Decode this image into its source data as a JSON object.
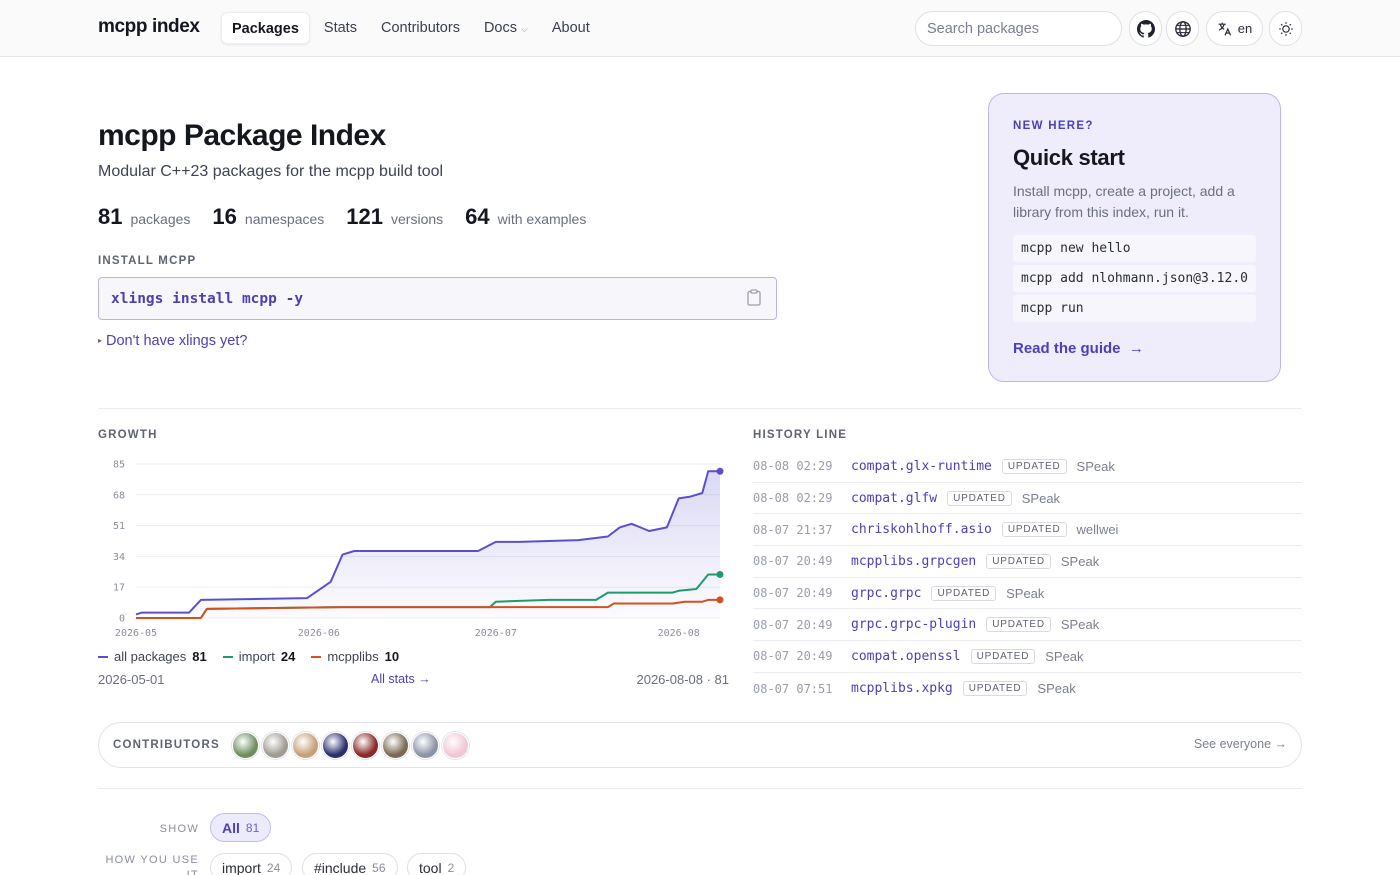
{
  "header": {
    "brand": "mcpp index",
    "nav": [
      {
        "label": "Packages",
        "active": true
      },
      {
        "label": "Stats"
      },
      {
        "label": "Contributors"
      },
      {
        "label": "Docs",
        "has_dropdown": true
      },
      {
        "label": "About"
      }
    ],
    "search_placeholder": "Search packages",
    "icons": [
      "github-icon",
      "globe-icon",
      "translate-icon",
      "theme-icon"
    ],
    "lang_label": "en"
  },
  "hero": {
    "title": "mcpp Package Index",
    "subtitle": "Modular C++23 packages for the mcpp build tool",
    "stats": [
      {
        "value": "81",
        "label": "packages"
      },
      {
        "value": "16",
        "label": "namespaces"
      },
      {
        "value": "121",
        "label": "versions"
      },
      {
        "value": "64",
        "label": "with examples"
      }
    ],
    "install_label": "INSTALL MCPP",
    "install_command": "xlings install mcpp -y",
    "no_xlings": "Don't have xlings yet?"
  },
  "quickstart": {
    "kicker": "NEW HERE?",
    "title": "Quick start",
    "description": "Install mcpp, create a project, add a library from this index, run it.",
    "commands": [
      "mcpp new hello",
      "mcpp add nlohmann.json@3.12.0",
      "mcpp run"
    ],
    "link": "Read the guide",
    "link_arrow": "→"
  },
  "growth": {
    "label": "GROWTH",
    "start_date": "2026-05-01",
    "all_stats": "All stats →",
    "end": "2026-08-08 · 81"
  },
  "chart_data": {
    "type": "area",
    "x_ticks": [
      "2026-05",
      "2026-06",
      "2026-07",
      "2026-08"
    ],
    "y_ticks": [
      0,
      17,
      34,
      51,
      68,
      85
    ],
    "ylim": [
      0,
      85
    ],
    "xlim": [
      "2026-05-01",
      "2026-08-08"
    ],
    "grid": true,
    "legend_position": "bottom-left",
    "series": [
      {
        "name": "all packages",
        "last": "81",
        "color": "#5b4fcf",
        "points": [
          [
            "2026-05-01",
            2
          ],
          [
            "2026-05-02",
            3
          ],
          [
            "2026-05-10",
            3
          ],
          [
            "2026-05-12",
            10
          ],
          [
            "2026-05-30",
            11
          ],
          [
            "2026-06-03",
            20
          ],
          [
            "2026-06-05",
            35
          ],
          [
            "2026-06-07",
            37
          ],
          [
            "2026-06-20",
            37
          ],
          [
            "2026-06-28",
            37
          ],
          [
            "2026-07-01",
            42
          ],
          [
            "2026-07-05",
            42
          ],
          [
            "2026-07-15",
            43
          ],
          [
            "2026-07-20",
            45
          ],
          [
            "2026-07-22",
            50
          ],
          [
            "2026-07-24",
            52
          ],
          [
            "2026-07-27",
            48
          ],
          [
            "2026-07-30",
            50
          ],
          [
            "2026-08-01",
            66
          ],
          [
            "2026-08-03",
            67
          ],
          [
            "2026-08-05",
            69
          ],
          [
            "2026-08-06",
            81
          ],
          [
            "2026-08-07",
            81
          ],
          [
            "2026-08-08",
            81
          ]
        ]
      },
      {
        "name": "import",
        "last": "24",
        "color": "#1e9b6d",
        "points": [
          [
            "2026-05-01",
            0
          ],
          [
            "2026-05-12",
            0
          ],
          [
            "2026-05-13",
            5
          ],
          [
            "2026-06-05",
            6
          ],
          [
            "2026-06-30",
            6
          ],
          [
            "2026-07-01",
            9
          ],
          [
            "2026-07-10",
            10
          ],
          [
            "2026-07-18",
            10
          ],
          [
            "2026-07-20",
            14
          ],
          [
            "2026-07-31",
            14
          ],
          [
            "2026-08-01",
            15
          ],
          [
            "2026-08-04",
            16
          ],
          [
            "2026-08-05",
            20
          ],
          [
            "2026-08-06",
            24
          ],
          [
            "2026-08-08",
            24
          ]
        ]
      },
      {
        "name": "mcpplibs",
        "last": "10",
        "color": "#d4511e",
        "points": [
          [
            "2026-05-01",
            0
          ],
          [
            "2026-05-12",
            0
          ],
          [
            "2026-05-13",
            5
          ],
          [
            "2026-06-05",
            6
          ],
          [
            "2026-07-20",
            6
          ],
          [
            "2026-07-21",
            8
          ],
          [
            "2026-07-31",
            8
          ],
          [
            "2026-08-02",
            9
          ],
          [
            "2026-08-05",
            9
          ],
          [
            "2026-08-06",
            10
          ],
          [
            "2026-08-08",
            10
          ]
        ]
      }
    ]
  },
  "history": {
    "label": "HISTORY LINE",
    "rows": [
      {
        "time": "08-08 02:29",
        "pkg": "compat.glx-runtime",
        "status": "UPDATED",
        "who": "SPeak"
      },
      {
        "time": "08-08 02:29",
        "pkg": "compat.glfw",
        "status": "UPDATED",
        "who": "SPeak"
      },
      {
        "time": "08-07 21:37",
        "pkg": "chriskohlhoff.asio",
        "status": "UPDATED",
        "who": "wellwei"
      },
      {
        "time": "08-07 20:49",
        "pkg": "mcpplibs.grpcgen",
        "status": "UPDATED",
        "who": "SPeak"
      },
      {
        "time": "08-07 20:49",
        "pkg": "grpc.grpc",
        "status": "UPDATED",
        "who": "SPeak"
      },
      {
        "time": "08-07 20:49",
        "pkg": "grpc.grpc-plugin",
        "status": "UPDATED",
        "who": "SPeak"
      },
      {
        "time": "08-07 20:49",
        "pkg": "compat.openssl",
        "status": "UPDATED",
        "who": "SPeak"
      },
      {
        "time": "08-07 07:51",
        "pkg": "mcpplibs.xpkg",
        "status": "UPDATED",
        "who": "SPeak"
      }
    ]
  },
  "contributors": {
    "label": "CONTRIBUTORS",
    "avatar_colors": [
      "#6f8f5f",
      "#a09a92",
      "#c7a07a",
      "#2b2f6e",
      "#8a2a2a",
      "#7b6a55",
      "#8d93a8",
      "#f1c6d6"
    ],
    "see_all": "See everyone →"
  },
  "filters": {
    "show_label": "SHOW",
    "how_label": "HOW YOU USE IT",
    "show_chips": [
      {
        "label": "All",
        "count": "81",
        "active": true
      }
    ],
    "how_chips": [
      {
        "label": "import",
        "count": "24"
      },
      {
        "label": "#include",
        "count": "56"
      },
      {
        "label": "tool",
        "count": "2"
      }
    ]
  },
  "colors": {
    "accent": "#4c40b8",
    "accent_soft": "#efedfb"
  }
}
